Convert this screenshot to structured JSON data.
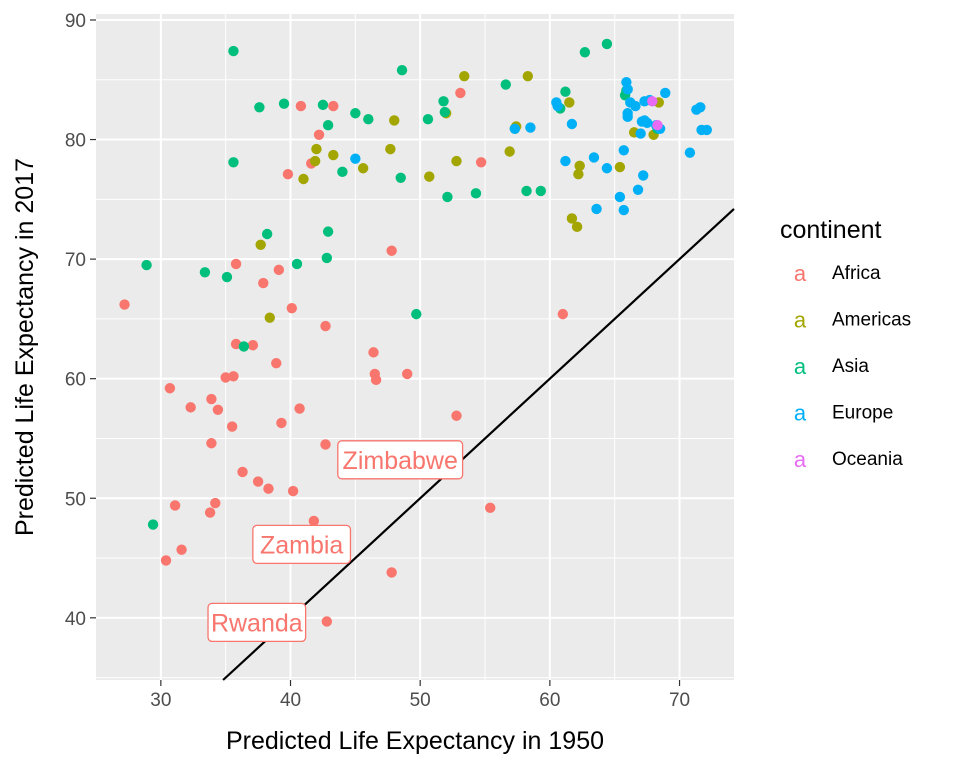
{
  "chart_data": {
    "type": "scatter",
    "xlabel": "Predicted Life Expectancy in 1950",
    "ylabel": "Predicted Life Expectancy in 2017",
    "xlim": [
      25,
      74.2
    ],
    "ylim": [
      34.8,
      90.5
    ],
    "xticks": [
      30,
      40,
      50,
      60,
      70
    ],
    "yticks": [
      40,
      50,
      60,
      70,
      80,
      90
    ],
    "grid": true,
    "legend": {
      "title": "continent",
      "position": "right",
      "key_glyph": "a"
    },
    "reference_line": {
      "slope": 1,
      "intercept": 0,
      "color": "#000000"
    },
    "colors": {
      "Africa": "#F8766D",
      "Americas": "#A3A500",
      "Asia": "#00BF7D",
      "Europe": "#00B0F6",
      "Oceania": "#E76BF3"
    },
    "series": [
      {
        "name": "Africa",
        "x": [
          27.2,
          30.4,
          30.7,
          31.1,
          31.6,
          32.3,
          33.8,
          33.9,
          33.9,
          34.2,
          34.4,
          35.0,
          35.5,
          35.6,
          35.8,
          35.8,
          36.3,
          37.1,
          37.5,
          37.9,
          38.3,
          38.9,
          39.1,
          39.3,
          39.6,
          39.8,
          40.1,
          40.2,
          40.7,
          40.8,
          41.6,
          41.8,
          42.2,
          42.7,
          42.7,
          42.8,
          43.3,
          44.0,
          44.4,
          46.2,
          46.4,
          46.5,
          46.6,
          47.2,
          47.8,
          47.8,
          49.0,
          52.8,
          53.1,
          54.7,
          55.4,
          61.0
        ],
        "y": [
          66.2,
          44.8,
          59.2,
          49.4,
          45.7,
          57.6,
          48.8,
          54.6,
          58.3,
          49.6,
          57.4,
          60.1,
          56.0,
          60.2,
          62.9,
          69.6,
          52.2,
          62.8,
          51.4,
          68.0,
          50.8,
          61.3,
          69.1,
          56.3,
          46.1,
          77.1,
          65.9,
          50.6,
          57.5,
          82.8,
          78.0,
          48.1,
          80.4,
          54.5,
          64.4,
          39.7,
          82.8,
          52.2,
          53.4,
          52.6,
          62.2,
          60.4,
          59.9,
          53.6,
          70.7,
          43.8,
          60.4,
          56.9,
          83.9,
          78.1,
          49.2,
          65.4
        ]
      },
      {
        "name": "Americas",
        "x": [
          37.7,
          38.4,
          41.0,
          41.9,
          42.0,
          43.3,
          45.6,
          47.7,
          48.0,
          50.7,
          52.0,
          52.8,
          53.4,
          56.9,
          57.3,
          57.4,
          58.3,
          61.5,
          61.7,
          62.1,
          62.2,
          62.3,
          65.4,
          66.5,
          68.0,
          68.4
        ],
        "y": [
          71.2,
          65.1,
          76.7,
          78.2,
          79.2,
          78.7,
          77.6,
          79.2,
          81.6,
          76.9,
          82.2,
          78.2,
          85.3,
          79.0,
          80.9,
          81.1,
          85.3,
          83.1,
          73.4,
          72.7,
          77.1,
          77.8,
          77.7,
          80.6,
          80.4,
          83.1
        ]
      },
      {
        "name": "Asia",
        "x": [
          28.9,
          29.4,
          33.4,
          35.1,
          35.6,
          35.6,
          36.4,
          37.6,
          38.2,
          39.5,
          40.5,
          42.5,
          42.8,
          42.9,
          42.9,
          44.0,
          45.0,
          46.0,
          48.5,
          48.6,
          49.7,
          50.6,
          51.8,
          51.9,
          52.1,
          54.3,
          56.6,
          58.2,
          59.3,
          60.8,
          61.2,
          62.7,
          64.4,
          65.8,
          65.9,
          68.3
        ],
        "y": [
          69.5,
          47.8,
          68.9,
          68.5,
          87.4,
          78.1,
          62.7,
          82.7,
          72.1,
          83.0,
          69.6,
          82.9,
          70.1,
          81.2,
          72.3,
          77.3,
          82.2,
          81.7,
          76.8,
          85.8,
          65.4,
          81.7,
          83.2,
          82.3,
          75.2,
          75.5,
          84.6,
          75.7,
          75.7,
          82.6,
          84.0,
          87.3,
          88.0,
          83.7,
          84.1,
          80.9
        ]
      },
      {
        "name": "Europe",
        "x": [
          45.0,
          57.3,
          58.5,
          60.5,
          60.6,
          61.2,
          61.7,
          63.4,
          63.6,
          64.4,
          65.4,
          65.7,
          65.7,
          65.9,
          66.0,
          66.0,
          66.0,
          66.2,
          66.6,
          66.8,
          67.0,
          67.1,
          67.2,
          67.3,
          67.3,
          67.5,
          67.7,
          68.2,
          68.5,
          68.9,
          70.8,
          71.3,
          71.6,
          71.7,
          72.1
        ],
        "y": [
          78.4,
          80.9,
          81.0,
          83.1,
          82.8,
          78.2,
          81.3,
          78.5,
          74.2,
          77.6,
          75.2,
          74.1,
          79.1,
          84.8,
          84.2,
          82.2,
          81.9,
          83.1,
          82.8,
          75.8,
          80.5,
          81.5,
          77.0,
          83.2,
          81.6,
          81.4,
          83.3,
          81.2,
          80.9,
          83.9,
          78.9,
          82.5,
          82.7,
          80.8,
          80.8
        ]
      },
      {
        "name": "Oceania",
        "x": [
          67.9,
          68.3
        ],
        "y": [
          83.2,
          81.2
        ]
      }
    ],
    "annotations": [
      {
        "text": "Rwanda",
        "x": 42.8,
        "y": 39.7,
        "color": "#F8766D"
      },
      {
        "text": "Zambia",
        "x": 47.8,
        "y": 43.8,
        "color": "#F8766D"
      },
      {
        "text": "Zimbabwe",
        "x": 55.4,
        "y": 49.2,
        "color": "#F8766D"
      }
    ]
  }
}
